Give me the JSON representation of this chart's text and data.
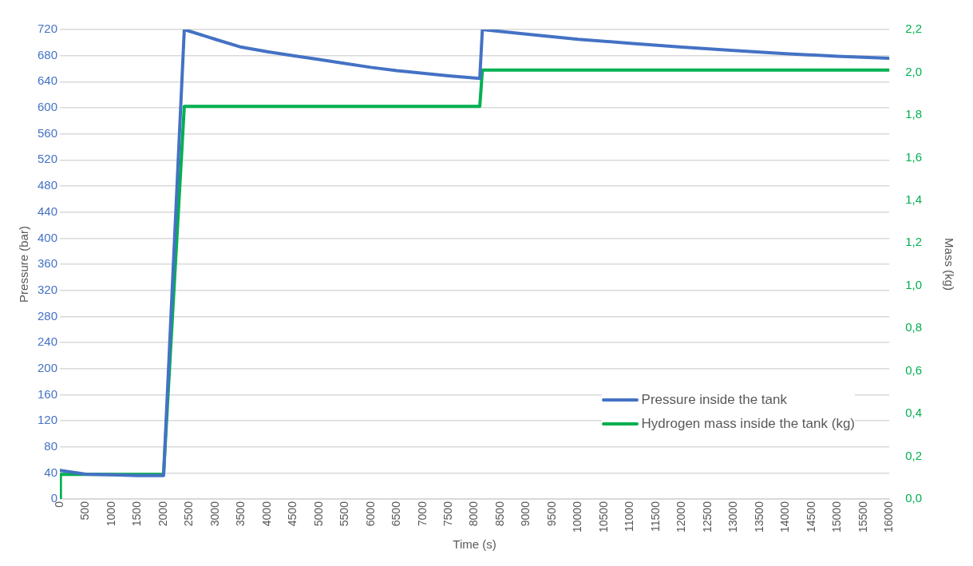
{
  "chart_data": {
    "type": "line",
    "xlabel": "Time (s)",
    "ylabel": "Pressure (bar)",
    "y2label": "Mass (kg)",
    "xlim": [
      0,
      16000
    ],
    "xticks": [
      0,
      500,
      1000,
      1500,
      2000,
      2500,
      3000,
      3500,
      4000,
      4500,
      5000,
      5500,
      6000,
      6500,
      7000,
      7500,
      8000,
      8500,
      9000,
      9500,
      10000,
      10500,
      11000,
      11500,
      12000,
      12500,
      13000,
      13500,
      14000,
      14500,
      15000,
      15500,
      16000
    ],
    "ylim": [
      0,
      720
    ],
    "yticks": [
      0,
      40,
      80,
      120,
      160,
      200,
      240,
      280,
      320,
      360,
      400,
      440,
      480,
      520,
      560,
      600,
      640,
      680,
      720
    ],
    "y2lim": [
      0,
      2.2
    ],
    "y2ticks": [
      {
        "value": 0,
        "label": "0,0"
      },
      {
        "value": 0.2,
        "label": "0,2"
      },
      {
        "value": 0.4,
        "label": "0,4"
      },
      {
        "value": 0.6,
        "label": "0,6"
      },
      {
        "value": 0.8,
        "label": "0,8"
      },
      {
        "value": 1.0,
        "label": "1,0"
      },
      {
        "value": 1.2,
        "label": "1,2"
      },
      {
        "value": 1.4,
        "label": "1,4"
      },
      {
        "value": 1.6,
        "label": "1,6"
      },
      {
        "value": 1.8,
        "label": "1,8"
      },
      {
        "value": 2.0,
        "label": "2,0"
      },
      {
        "value": 2.2,
        "label": "2,2"
      }
    ],
    "grid": "y",
    "legend": "bottom right",
    "marker": "none",
    "line_style": "solid",
    "series": [
      {
        "name": "Pressure inside the tank",
        "color": "#4472c4",
        "x": [
          0,
          500,
          1000,
          1500,
          2000,
          2400,
          3000,
          3500,
          4000,
          4500,
          5000,
          5500,
          6000,
          6500,
          7000,
          7500,
          8100,
          8150,
          9000,
          10000,
          11000,
          12000,
          13000,
          14000,
          15000,
          16000
        ],
        "values": [
          44,
          38,
          37,
          36,
          36,
          720,
          705,
          693,
          686,
          680,
          674,
          668,
          662,
          657,
          653,
          649,
          645,
          720,
          713,
          705,
          699,
          693,
          688,
          683,
          679,
          676
        ]
      },
      {
        "name": "Hydrogen mass inside the tank (kg)",
        "color": "#00b050",
        "axis": "y2",
        "x": [
          0,
          10,
          2000,
          2400,
          8100,
          8150,
          16000
        ],
        "values": [
          0,
          0.115,
          0.115,
          1.84,
          1.84,
          2.01,
          2.01
        ]
      }
    ]
  }
}
